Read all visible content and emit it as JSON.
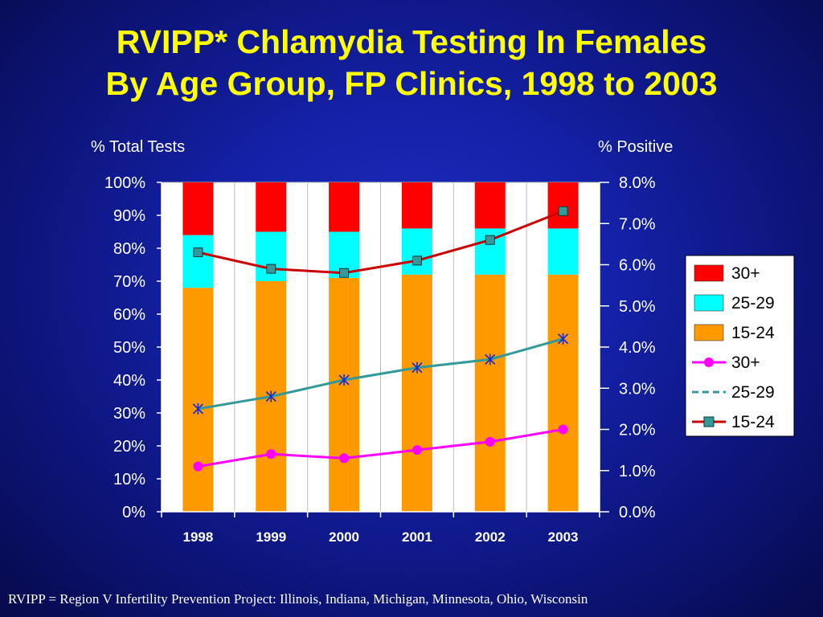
{
  "title_line1": "RVIPP* Chlamydia Testing In Females",
  "title_line2": "By Age Group, FP Clinics, 1998 to 2003",
  "footnote": "RVIPP = Region V Infertility Prevention Project: Illinois, Indiana, Michigan, Minnesota, Ohio, Wisconsin",
  "chart_data": {
    "type": "bar",
    "stacked": true,
    "categories": [
      "1998",
      "1999",
      "2000",
      "2001",
      "2002",
      "2003"
    ],
    "left_axis": {
      "label": "% Total Tests",
      "ylim": [
        0,
        100
      ],
      "ticks": [
        "0%",
        "10%",
        "20%",
        "30%",
        "40%",
        "50%",
        "60%",
        "70%",
        "80%",
        "90%",
        "100%"
      ]
    },
    "right_axis": {
      "label": "% Positive",
      "ylim": [
        0,
        8
      ],
      "ticks": [
        "0.0%",
        "1.0%",
        "2.0%",
        "3.0%",
        "4.0%",
        "5.0%",
        "6.0%",
        "7.0%",
        "8.0%"
      ]
    },
    "bar_series": [
      {
        "name": "15-24",
        "color": "#ff9900",
        "values": [
          68,
          70,
          71,
          72,
          72,
          72
        ]
      },
      {
        "name": "25-29",
        "color": "#00ffff",
        "values": [
          16,
          15,
          14,
          14,
          14,
          14
        ]
      },
      {
        "name": "30+",
        "color": "#ff0000",
        "values": [
          16,
          15,
          15,
          14,
          14,
          14
        ]
      }
    ],
    "line_series": [
      {
        "name": "30+",
        "color": "#ff00ff",
        "marker": "circle",
        "values": [
          1.1,
          1.4,
          1.3,
          1.5,
          1.7,
          2.0
        ]
      },
      {
        "name": "25-29",
        "color": "#339999",
        "marker": "asterisk",
        "values": [
          2.5,
          2.8,
          3.2,
          3.5,
          3.7,
          4.2
        ]
      },
      {
        "name": "15-24",
        "color": "#cc0000",
        "marker": "square",
        "marker_color": "#339999",
        "values": [
          6.3,
          5.9,
          5.8,
          6.1,
          6.6,
          7.3
        ]
      }
    ],
    "legend": {
      "position": "right",
      "entries": [
        {
          "label": "30+",
          "kind": "bar",
          "color": "#ff0000"
        },
        {
          "label": "25-29",
          "kind": "bar",
          "color": "#00ffff"
        },
        {
          "label": "15-24",
          "kind": "bar",
          "color": "#ff9900"
        },
        {
          "label": "30+",
          "kind": "line",
          "color": "#ff00ff",
          "marker": "circle"
        },
        {
          "label": "25-29",
          "kind": "line",
          "color": "#339999",
          "marker": "dash"
        },
        {
          "label": "15-24",
          "kind": "line",
          "color": "#cc0000",
          "marker": "square"
        }
      ]
    },
    "grid": false
  }
}
